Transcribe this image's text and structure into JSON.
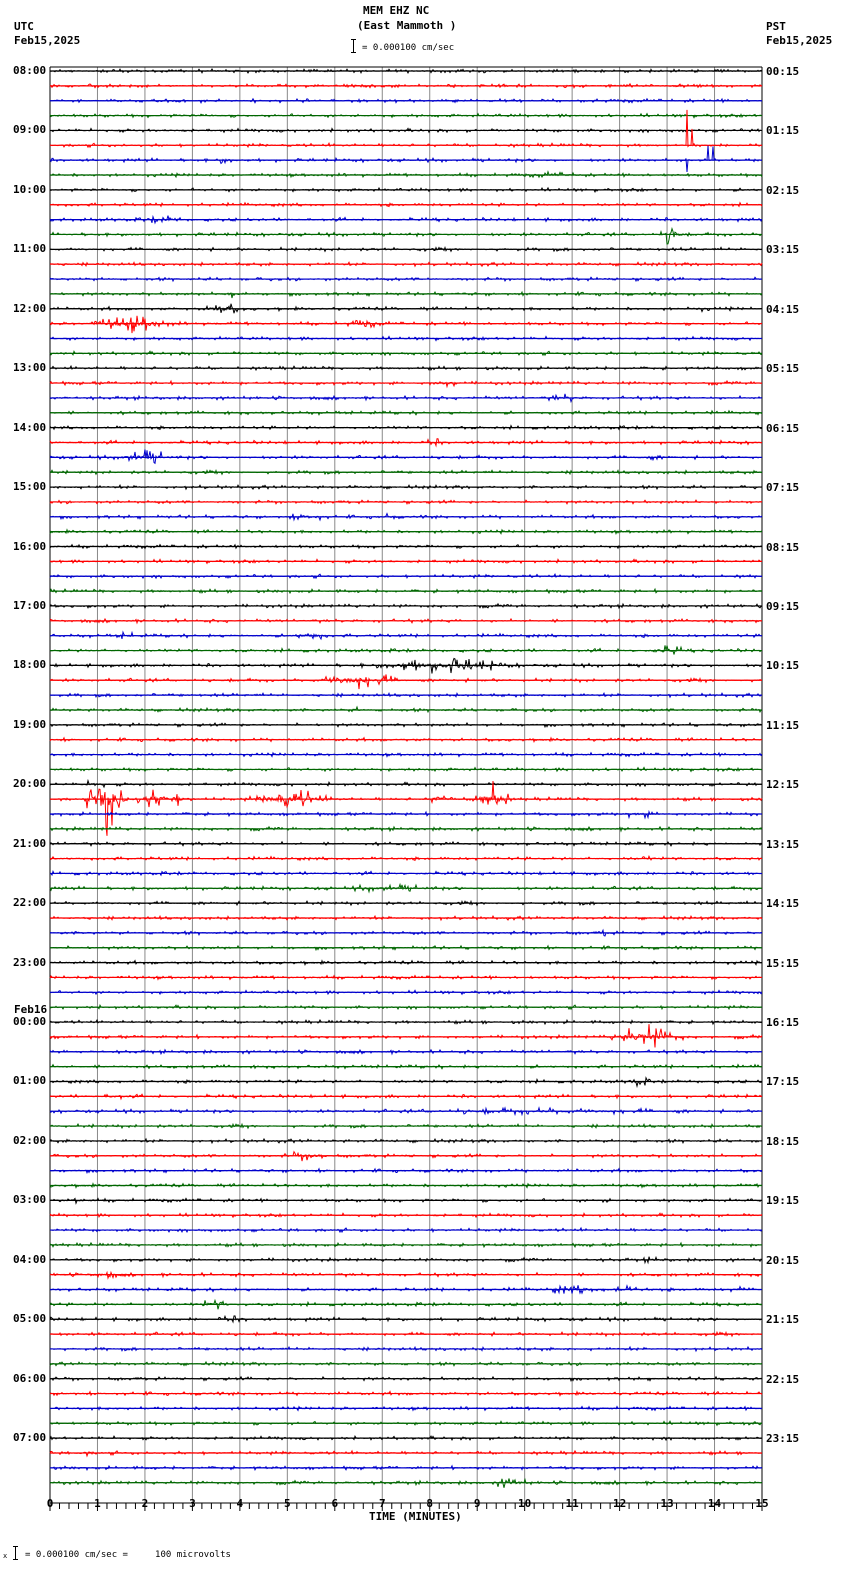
{
  "header": {
    "station": "MEM EHZ NC",
    "location": "(East Mammoth )",
    "scale_text": "= 0.000100 cm/sec",
    "left_tz": "UTC",
    "left_date": "Feb15,2025",
    "right_tz": "PST",
    "right_date": "Feb15,2025"
  },
  "footer": {
    "scale_note": "= 0.000100 cm/sec =     100 microvolts",
    "xlabel": "TIME (MINUTES)"
  },
  "date_change_label": "Feb16",
  "chart_data": {
    "type": "line",
    "title": "MEM EHZ NC (East Mammoth )",
    "subtitle": "helicorder 24h, 15 min per line",
    "xlabel": "TIME (MINUTES)",
    "ylabel": "",
    "xlim": [
      0,
      15
    ],
    "x_ticks": [
      "0",
      "1",
      "2",
      "3",
      "4",
      "5",
      "6",
      "7",
      "8",
      "9",
      "10",
      "11",
      "12",
      "13",
      "14",
      "15"
    ],
    "trace_colors": [
      "#000000",
      "#ff0000",
      "#0000cc",
      "#006600"
    ],
    "num_traces": 96,
    "left_labels": [
      "08:00",
      "09:00",
      "10:00",
      "11:00",
      "12:00",
      "13:00",
      "14:00",
      "15:00",
      "16:00",
      "17:00",
      "18:00",
      "19:00",
      "20:00",
      "21:00",
      "22:00",
      "23:00",
      "00:00",
      "01:00",
      "02:00",
      "03:00",
      "04:00",
      "05:00",
      "06:00",
      "07:00"
    ],
    "right_labels": [
      "00:15",
      "01:15",
      "02:15",
      "03:15",
      "04:15",
      "05:15",
      "06:15",
      "07:15",
      "08:15",
      "09:15",
      "10:15",
      "11:15",
      "12:15",
      "13:15",
      "14:15",
      "15:15",
      "16:15",
      "17:15",
      "18:15",
      "19:15",
      "20:15",
      "21:15",
      "22:15",
      "23:15"
    ],
    "scale": "0.000100 cm/sec = 100 microvolts",
    "events": [
      {
        "trace": 5,
        "x0": 13.3,
        "x1": 13.5,
        "amp": 40,
        "kind": "spike"
      },
      {
        "trace": 6,
        "x0": 13.4,
        "x1": 14.2,
        "amp": 28,
        "kind": "spike"
      },
      {
        "trace": 6,
        "x0": 3.4,
        "x1": 4.0,
        "amp": 3,
        "kind": "burst"
      },
      {
        "trace": 7,
        "x0": 9.8,
        "x1": 11.5,
        "amp": 2.5,
        "kind": "burst"
      },
      {
        "trace": 8,
        "x0": 13.5,
        "x1": 13.8,
        "amp": 30,
        "kind": "spike"
      },
      {
        "trace": 10,
        "x0": 1.8,
        "x1": 3.0,
        "amp": 3,
        "kind": "burst"
      },
      {
        "trace": 11,
        "x0": 12.9,
        "x1": 13.3,
        "amp": 10,
        "kind": "burst"
      },
      {
        "trace": 15,
        "x0": 3.4,
        "x1": 4.2,
        "amp": 3,
        "kind": "burst"
      },
      {
        "trace": 16,
        "x0": 3.2,
        "x1": 4.1,
        "amp": 6,
        "kind": "burst"
      },
      {
        "trace": 16,
        "x0": 13.3,
        "x1": 14.0,
        "amp": 2.5,
        "kind": "burst"
      },
      {
        "trace": 17,
        "x0": 0.7,
        "x1": 2.7,
        "amp": 7,
        "kind": "burst"
      },
      {
        "trace": 17,
        "x0": 6.0,
        "x1": 7.2,
        "amp": 3,
        "kind": "burst"
      },
      {
        "trace": 21,
        "x0": 7.8,
        "x1": 8.8,
        "amp": 3,
        "kind": "burst"
      },
      {
        "trace": 22,
        "x0": 10.3,
        "x1": 11.3,
        "amp": 3,
        "kind": "burst"
      },
      {
        "trace": 25,
        "x0": 7.8,
        "x1": 8.4,
        "amp": 3,
        "kind": "burst"
      },
      {
        "trace": 26,
        "x0": 1.3,
        "x1": 2.7,
        "amp": 6,
        "kind": "burst"
      },
      {
        "trace": 26,
        "x0": 12.0,
        "x1": 13.2,
        "amp": 2,
        "kind": "burst"
      },
      {
        "trace": 30,
        "x0": 6.7,
        "x1": 7.5,
        "amp": 2.5,
        "kind": "burst"
      },
      {
        "trace": 30,
        "x0": 4.9,
        "x1": 6.0,
        "amp": 4,
        "kind": "burst"
      },
      {
        "trace": 38,
        "x0": 1.3,
        "x1": 1.9,
        "amp": 3,
        "kind": "burst"
      },
      {
        "trace": 38,
        "x0": 5.0,
        "x1": 6.0,
        "amp": 4,
        "kind": "burst"
      },
      {
        "trace": 39,
        "x0": 12.5,
        "x1": 13.5,
        "amp": 4,
        "kind": "burst"
      },
      {
        "trace": 40,
        "x0": 6.5,
        "x1": 10.0,
        "amp": 6,
        "kind": "burst"
      },
      {
        "trace": 41,
        "x0": 5.5,
        "x1": 7.5,
        "amp": 7,
        "kind": "burst"
      },
      {
        "trace": 43,
        "x0": 6.3,
        "x1": 6.6,
        "amp": 3,
        "kind": "burst"
      },
      {
        "trace": 44,
        "x0": 14.8,
        "x1": 15.0,
        "amp": 5,
        "kind": "burst"
      },
      {
        "trace": 48,
        "x0": 0.5,
        "x1": 1.4,
        "amp": 3,
        "kind": "burst"
      },
      {
        "trace": 49,
        "x0": 0.8,
        "x1": 1.6,
        "amp": 28,
        "kind": "burst"
      },
      {
        "trace": 49,
        "x0": 1.6,
        "x1": 3.0,
        "amp": 8,
        "kind": "burst"
      },
      {
        "trace": 49,
        "x0": 4.2,
        "x1": 6.0,
        "amp": 8,
        "kind": "burst"
      },
      {
        "trace": 49,
        "x0": 8.0,
        "x1": 8.4,
        "amp": 8,
        "kind": "burst"
      },
      {
        "trace": 49,
        "x0": 8.9,
        "x1": 9.6,
        "amp": 20,
        "kind": "burst"
      },
      {
        "trace": 50,
        "x0": 11.8,
        "x1": 13.0,
        "amp": 3,
        "kind": "burst"
      },
      {
        "trace": 53,
        "x0": 12.2,
        "x1": 12.8,
        "amp": 2.5,
        "kind": "burst"
      },
      {
        "trace": 55,
        "x0": 5.8,
        "x1": 8.5,
        "amp": 3,
        "kind": "burst"
      },
      {
        "trace": 58,
        "x0": 11.5,
        "x1": 11.9,
        "amp": 3,
        "kind": "burst"
      },
      {
        "trace": 65,
        "x0": 11.8,
        "x1": 13.3,
        "amp": 10,
        "kind": "burst"
      },
      {
        "trace": 67,
        "x0": 1.4,
        "x1": 1.8,
        "amp": 2.5,
        "kind": "burst"
      },
      {
        "trace": 68,
        "x0": 12.1,
        "x1": 12.7,
        "amp": 4,
        "kind": "burst"
      },
      {
        "trace": 69,
        "x0": 1.0,
        "x1": 1.7,
        "amp": 2.5,
        "kind": "burst"
      },
      {
        "trace": 70,
        "x0": 6.0,
        "x1": 15.0,
        "amp": 2.5,
        "kind": "burst"
      },
      {
        "trace": 73,
        "x0": 4.8,
        "x1": 6.0,
        "amp": 4,
        "kind": "burst"
      },
      {
        "trace": 75,
        "x0": 15.0,
        "x1": 15.0,
        "amp": 3,
        "kind": "burst"
      },
      {
        "trace": 76,
        "x0": 0.0,
        "x1": 0.9,
        "amp": 3,
        "kind": "burst"
      },
      {
        "trace": 76,
        "x0": 11.4,
        "x1": 12.0,
        "amp": 2.5,
        "kind": "burst"
      },
      {
        "trace": 82,
        "x0": 11.3,
        "x1": 13.0,
        "amp": 3,
        "kind": "burst"
      },
      {
        "trace": 80,
        "x0": 12.3,
        "x1": 13.1,
        "amp": 2.5,
        "kind": "burst"
      },
      {
        "trace": 81,
        "x0": 0.7,
        "x1": 1.6,
        "amp": 3,
        "kind": "burst"
      },
      {
        "trace": 82,
        "x0": 10.3,
        "x1": 11.7,
        "amp": 4,
        "kind": "burst"
      },
      {
        "trace": 82,
        "x0": 14.2,
        "x1": 14.9,
        "amp": 3,
        "kind": "burst"
      },
      {
        "trace": 83,
        "x0": 3.0,
        "x1": 4.0,
        "amp": 4,
        "kind": "burst"
      },
      {
        "trace": 84,
        "x0": 3.2,
        "x1": 4.5,
        "amp": 2.5,
        "kind": "burst"
      },
      {
        "trace": 93,
        "x0": 0.4,
        "x1": 1.0,
        "amp": 2.5,
        "kind": "burst"
      },
      {
        "trace": 95,
        "x0": 9.1,
        "x1": 10.3,
        "amp": 4,
        "kind": "burst"
      }
    ]
  }
}
